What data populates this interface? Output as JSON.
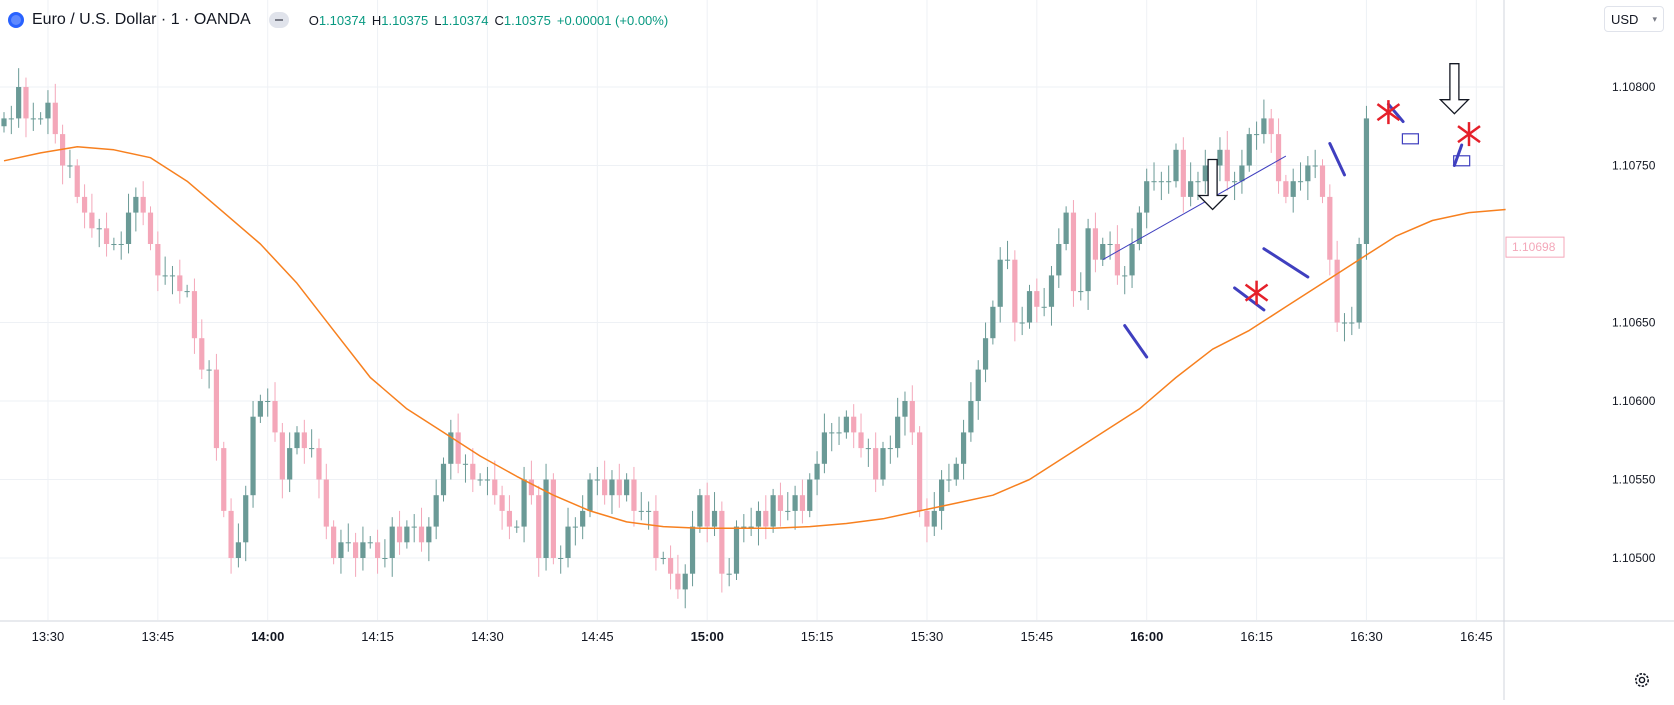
{
  "legend": {
    "symbol": "Euro / U.S. Dollar · 1 · OANDA",
    "open_label": "O",
    "open": "1.10374",
    "high_label": "H",
    "high": "1.10375",
    "low_label": "L",
    "low": "1.10374",
    "close_label": "C",
    "close": "1.10375",
    "change": "+0.00001 (+0.00%)"
  },
  "currency_selector": {
    "label": "USD"
  },
  "icons": {
    "logo": "tradingview-logo-icon",
    "toggle": "collapse-legend-icon",
    "settings": "settings-gear-icon",
    "dropdown": "chevron-down-icon"
  },
  "colors": {
    "up": "#6a9a96",
    "down": "#f4a7b9",
    "ma": "#f7801f",
    "drawing": "#3f3fbf",
    "cross": "#e5202a",
    "price_label": "#f4a7b9",
    "grid": "#eef1f5"
  },
  "chart_data": {
    "type": "candlestick",
    "instrument": "EURUSD",
    "interval": "1",
    "ylim": [
      1.1047,
      1.1084
    ],
    "yticks": [
      "1.10800",
      "1.10750",
      "1.10650",
      "1.10600",
      "1.10550",
      "1.10500"
    ],
    "last_price_label": "1.10698",
    "xticks": [
      {
        "label": "13:30",
        "bold": false,
        "index": 6
      },
      {
        "label": "13:45",
        "bold": false,
        "index": 21
      },
      {
        "label": "14:00",
        "bold": true,
        "index": 36
      },
      {
        "label": "14:15",
        "bold": false,
        "index": 51
      },
      {
        "label": "14:30",
        "bold": false,
        "index": 66
      },
      {
        "label": "14:45",
        "bold": false,
        "index": 81
      },
      {
        "label": "15:00",
        "bold": true,
        "index": 96
      },
      {
        "label": "15:15",
        "bold": false,
        "index": 111
      },
      {
        "label": "15:30",
        "bold": false,
        "index": 126
      },
      {
        "label": "15:45",
        "bold": false,
        "index": 141
      },
      {
        "label": "16:00",
        "bold": true,
        "index": 156
      },
      {
        "label": "16:15",
        "bold": false,
        "index": 171
      },
      {
        "label": "16:30",
        "bold": false,
        "index": 186
      },
      {
        "label": "16:45",
        "bold": false,
        "index": 201
      }
    ],
    "closes": [
      1.1078,
      1.1078,
      1.108,
      1.1078,
      1.1078,
      1.1078,
      1.1079,
      1.1077,
      1.1075,
      1.1075,
      1.1073,
      1.1072,
      1.1071,
      1.1071,
      1.107,
      1.107,
      1.107,
      1.1072,
      1.1073,
      1.1072,
      1.107,
      1.1068,
      1.1068,
      1.1068,
      1.1067,
      1.1067,
      1.1064,
      1.1062,
      1.1062,
      1.1057,
      1.1053,
      1.105,
      1.1051,
      1.1054,
      1.1059,
      1.106,
      1.106,
      1.1058,
      1.1055,
      1.1057,
      1.1058,
      1.1057,
      1.1057,
      1.1055,
      1.1052,
      1.105,
      1.1051,
      1.1051,
      1.105,
      1.1051,
      1.1051,
      1.105,
      1.105,
      1.1052,
      1.1051,
      1.1052,
      1.1052,
      1.1051,
      1.1052,
      1.1054,
      1.1056,
      1.1058,
      1.1056,
      1.1056,
      1.1055,
      1.1055,
      1.1055,
      1.1054,
      1.1053,
      1.1052,
      1.1052,
      1.1055,
      1.1054,
      1.105,
      1.1055,
      1.105,
      1.105,
      1.1052,
      1.1052,
      1.1053,
      1.1055,
      1.1055,
      1.1054,
      1.1055,
      1.1054,
      1.1055,
      1.1053,
      1.1053,
      1.1053,
      1.105,
      1.105,
      1.1049,
      1.1048,
      1.1049,
      1.1052,
      1.1054,
      1.1052,
      1.1053,
      1.1049,
      1.1049,
      1.1052,
      1.1052,
      1.1052,
      1.1053,
      1.1052,
      1.1054,
      1.1053,
      1.1053,
      1.1054,
      1.1053,
      1.1055,
      1.1056,
      1.1058,
      1.1058,
      1.1058,
      1.1059,
      1.1058,
      1.1057,
      1.1057,
      1.1055,
      1.1057,
      1.1057,
      1.1059,
      1.106,
      1.1058,
      1.1053,
      1.1052,
      1.1053,
      1.1055,
      1.1055,
      1.1056,
      1.1058,
      1.106,
      1.1062,
      1.1064,
      1.1066,
      1.1069,
      1.1069,
      1.1065,
      1.1065,
      1.1067,
      1.1066,
      1.1066,
      1.1068,
      1.107,
      1.1072,
      1.1067,
      1.1067,
      1.1071,
      1.1069,
      1.107,
      1.107,
      1.1068,
      1.1068,
      1.107,
      1.1072,
      1.1074,
      1.1074,
      1.1074,
      1.1074,
      1.1076,
      1.1073,
      1.1074,
      1.1074,
      1.1075,
      1.1075,
      1.1076,
      1.1074,
      1.1074,
      1.1075,
      1.1077,
      1.1077,
      1.1078,
      1.1077,
      1.1074,
      1.1073,
      1.1074,
      1.1074,
      1.1075,
      1.1075,
      1.1073,
      1.1069,
      1.1065,
      1.1065,
      1.1065,
      1.107,
      1.1078
    ],
    "moving_average": {
      "name": "MA",
      "knots": [
        [
          0,
          1.10753
        ],
        [
          5,
          1.10758
        ],
        [
          10,
          1.10762
        ],
        [
          15,
          1.1076
        ],
        [
          20,
          1.10755
        ],
        [
          25,
          1.1074
        ],
        [
          30,
          1.1072
        ],
        [
          35,
          1.107
        ],
        [
          40,
          1.10675
        ],
        [
          45,
          1.10645
        ],
        [
          50,
          1.10615
        ],
        [
          55,
          1.10595
        ],
        [
          60,
          1.1058
        ],
        [
          65,
          1.10565
        ],
        [
          70,
          1.10552
        ],
        [
          75,
          1.1054
        ],
        [
          80,
          1.1053
        ],
        [
          85,
          1.10523
        ],
        [
          90,
          1.1052
        ],
        [
          95,
          1.10519
        ],
        [
          100,
          1.10519
        ],
        [
          105,
          1.10519
        ],
        [
          110,
          1.1052
        ],
        [
          115,
          1.10522
        ],
        [
          120,
          1.10525
        ],
        [
          125,
          1.1053
        ],
        [
          130,
          1.10535
        ],
        [
          135,
          1.1054
        ],
        [
          140,
          1.1055
        ],
        [
          145,
          1.10565
        ],
        [
          150,
          1.1058
        ],
        [
          155,
          1.10595
        ],
        [
          160,
          1.10615
        ],
        [
          165,
          1.10633
        ],
        [
          170,
          1.10645
        ],
        [
          175,
          1.1066
        ],
        [
          180,
          1.10675
        ],
        [
          185,
          1.1069
        ],
        [
          190,
          1.10705
        ],
        [
          195,
          1.10715
        ],
        [
          200,
          1.1072
        ],
        [
          205,
          1.10722
        ]
      ]
    },
    "annotations": {
      "trendline": [
        [
          150,
          1.1069
        ],
        [
          175,
          1.10756
        ]
      ],
      "arrows_down": [
        [
          165,
          1.10722
        ],
        [
          198,
          1.10783
        ]
      ],
      "blue_strokes": [
        [
          [
            153,
            1.10648
          ],
          [
            156,
            1.10628
          ]
        ],
        [
          [
            168,
            1.10672
          ],
          [
            172,
            1.10658
          ]
        ],
        [
          [
            172,
            1.10697
          ],
          [
            178,
            1.10679
          ]
        ],
        [
          [
            181,
            1.10764
          ],
          [
            183,
            1.10744
          ]
        ],
        [
          [
            189,
            1.10789
          ],
          [
            191,
            1.10778
          ]
        ],
        [
          [
            198,
            1.1075
          ],
          [
            199,
            1.10763
          ]
        ]
      ],
      "red_crosses": [
        [
          171,
          1.10669
        ],
        [
          189,
          1.10784
        ],
        [
          200,
          1.1077
        ]
      ],
      "boxes": [
        [
          192,
          1.10767
        ],
        [
          199,
          1.10753
        ]
      ]
    }
  }
}
